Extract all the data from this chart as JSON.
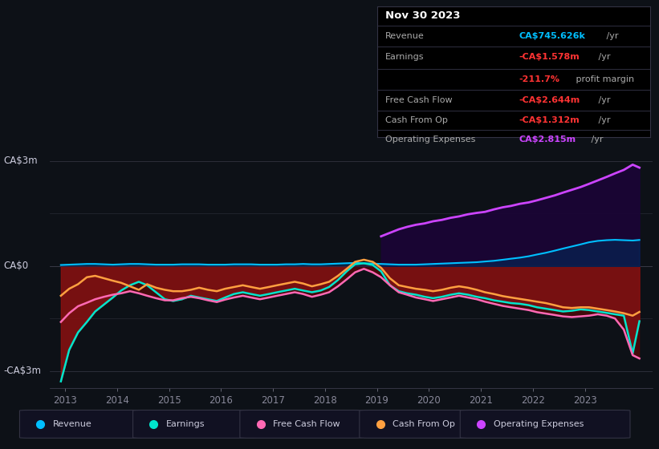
{
  "bg_color": "#0d1117",
  "ylim": [
    -3.5,
    3.5
  ],
  "xlim": [
    2012.7,
    2024.3
  ],
  "x_ticks": [
    2013,
    2014,
    2015,
    2016,
    2017,
    2018,
    2019,
    2020,
    2021,
    2022,
    2023
  ],
  "y_label_top": "CA$3m",
  "y_label_zero": "CA$0",
  "y_label_bot": "-CA$3m",
  "rev_color": "#00bfff",
  "earn_color": "#00e5cc",
  "fcf_color": "#ff69b4",
  "cfop_color": "#ffa040",
  "opex_color": "#cc44ff",
  "legend": [
    {
      "label": "Revenue",
      "color": "#00bfff"
    },
    {
      "label": "Earnings",
      "color": "#00e5cc"
    },
    {
      "label": "Free Cash Flow",
      "color": "#ff69b4"
    },
    {
      "label": "Cash From Op",
      "color": "#ffa040"
    },
    {
      "label": "Operating Expenses",
      "color": "#cc44ff"
    }
  ],
  "t": [
    2012.92,
    2013.08,
    2013.25,
    2013.42,
    2013.58,
    2013.75,
    2013.92,
    2014.08,
    2014.25,
    2014.42,
    2014.58,
    2014.75,
    2014.92,
    2015.08,
    2015.25,
    2015.42,
    2015.58,
    2015.75,
    2015.92,
    2016.08,
    2016.25,
    2016.42,
    2016.58,
    2016.75,
    2016.92,
    2017.08,
    2017.25,
    2017.42,
    2017.58,
    2017.75,
    2017.92,
    2018.08,
    2018.25,
    2018.42,
    2018.58,
    2018.75,
    2018.92,
    2019.08,
    2019.25,
    2019.42,
    2019.58,
    2019.75,
    2019.92,
    2020.08,
    2020.25,
    2020.42,
    2020.58,
    2020.75,
    2020.92,
    2021.08,
    2021.25,
    2021.42,
    2021.58,
    2021.75,
    2021.92,
    2022.08,
    2022.25,
    2022.42,
    2022.58,
    2022.75,
    2022.92,
    2023.08,
    2023.25,
    2023.42,
    2023.58,
    2023.75,
    2023.92,
    2024.05
  ],
  "revenue": [
    0.03,
    0.04,
    0.05,
    0.06,
    0.06,
    0.05,
    0.04,
    0.05,
    0.06,
    0.06,
    0.05,
    0.04,
    0.04,
    0.04,
    0.05,
    0.05,
    0.05,
    0.04,
    0.04,
    0.04,
    0.05,
    0.05,
    0.05,
    0.04,
    0.04,
    0.04,
    0.05,
    0.05,
    0.06,
    0.05,
    0.05,
    0.06,
    0.07,
    0.08,
    0.09,
    0.08,
    0.07,
    0.06,
    0.05,
    0.04,
    0.04,
    0.04,
    0.05,
    0.06,
    0.07,
    0.08,
    0.09,
    0.1,
    0.11,
    0.13,
    0.15,
    0.18,
    0.21,
    0.24,
    0.28,
    0.33,
    0.38,
    0.44,
    0.5,
    0.56,
    0.62,
    0.68,
    0.72,
    0.74,
    0.75,
    0.74,
    0.73,
    0.746
  ],
  "earnings": [
    -3.3,
    -2.4,
    -1.9,
    -1.6,
    -1.3,
    -1.1,
    -0.9,
    -0.7,
    -0.55,
    -0.45,
    -0.55,
    -0.75,
    -0.95,
    -1.0,
    -0.95,
    -0.85,
    -0.9,
    -0.95,
    -1.0,
    -0.9,
    -0.8,
    -0.75,
    -0.8,
    -0.85,
    -0.8,
    -0.75,
    -0.7,
    -0.65,
    -0.7,
    -0.75,
    -0.7,
    -0.6,
    -0.4,
    -0.15,
    0.05,
    0.08,
    0.03,
    -0.15,
    -0.55,
    -0.72,
    -0.78,
    -0.82,
    -0.88,
    -0.92,
    -0.88,
    -0.82,
    -0.78,
    -0.82,
    -0.88,
    -0.92,
    -0.98,
    -1.02,
    -1.06,
    -1.08,
    -1.12,
    -1.18,
    -1.22,
    -1.26,
    -1.3,
    -1.28,
    -1.24,
    -1.26,
    -1.3,
    -1.34,
    -1.38,
    -1.42,
    -2.5,
    -1.578
  ],
  "free_cash_flow": [
    -1.6,
    -1.35,
    -1.15,
    -1.05,
    -0.95,
    -0.88,
    -0.82,
    -0.78,
    -0.72,
    -0.78,
    -0.85,
    -0.92,
    -0.98,
    -0.98,
    -0.92,
    -0.88,
    -0.92,
    -0.98,
    -1.03,
    -0.96,
    -0.9,
    -0.85,
    -0.9,
    -0.95,
    -0.9,
    -0.85,
    -0.8,
    -0.75,
    -0.8,
    -0.88,
    -0.82,
    -0.75,
    -0.58,
    -0.38,
    -0.18,
    -0.08,
    -0.18,
    -0.32,
    -0.55,
    -0.75,
    -0.82,
    -0.9,
    -0.95,
    -1.0,
    -0.95,
    -0.9,
    -0.85,
    -0.9,
    -0.95,
    -1.02,
    -1.08,
    -1.14,
    -1.18,
    -1.22,
    -1.26,
    -1.32,
    -1.36,
    -1.4,
    -1.44,
    -1.46,
    -1.44,
    -1.42,
    -1.38,
    -1.42,
    -1.5,
    -1.82,
    -2.55,
    -2.644
  ],
  "cash_from_op": [
    -0.85,
    -0.65,
    -0.52,
    -0.32,
    -0.28,
    -0.35,
    -0.42,
    -0.48,
    -0.58,
    -0.68,
    -0.52,
    -0.62,
    -0.68,
    -0.72,
    -0.72,
    -0.68,
    -0.62,
    -0.68,
    -0.72,
    -0.65,
    -0.6,
    -0.55,
    -0.6,
    -0.65,
    -0.6,
    -0.55,
    -0.5,
    -0.45,
    -0.5,
    -0.58,
    -0.52,
    -0.45,
    -0.28,
    -0.08,
    0.12,
    0.18,
    0.12,
    -0.05,
    -0.35,
    -0.55,
    -0.6,
    -0.65,
    -0.68,
    -0.72,
    -0.68,
    -0.62,
    -0.58,
    -0.62,
    -0.68,
    -0.75,
    -0.8,
    -0.86,
    -0.9,
    -0.94,
    -0.98,
    -1.02,
    -1.06,
    -1.12,
    -1.18,
    -1.2,
    -1.18,
    -1.18,
    -1.22,
    -1.26,
    -1.3,
    -1.35,
    -1.42,
    -1.312
  ],
  "op_expenses": [
    0.0,
    0.0,
    0.0,
    0.0,
    0.0,
    0.0,
    0.0,
    0.0,
    0.0,
    0.0,
    0.0,
    0.0,
    0.0,
    0.0,
    0.0,
    0.0,
    0.0,
    0.0,
    0.0,
    0.0,
    0.0,
    0.0,
    0.0,
    0.0,
    0.0,
    0.0,
    0.0,
    0.0,
    0.0,
    0.0,
    0.0,
    0.0,
    0.0,
    0.0,
    0.0,
    0.0,
    0.0,
    0.85,
    0.95,
    1.05,
    1.12,
    1.18,
    1.22,
    1.28,
    1.32,
    1.38,
    1.42,
    1.48,
    1.52,
    1.55,
    1.62,
    1.68,
    1.72,
    1.78,
    1.82,
    1.88,
    1.95,
    2.02,
    2.1,
    2.18,
    2.26,
    2.35,
    2.45,
    2.55,
    2.65,
    2.75,
    2.9,
    2.815
  ]
}
